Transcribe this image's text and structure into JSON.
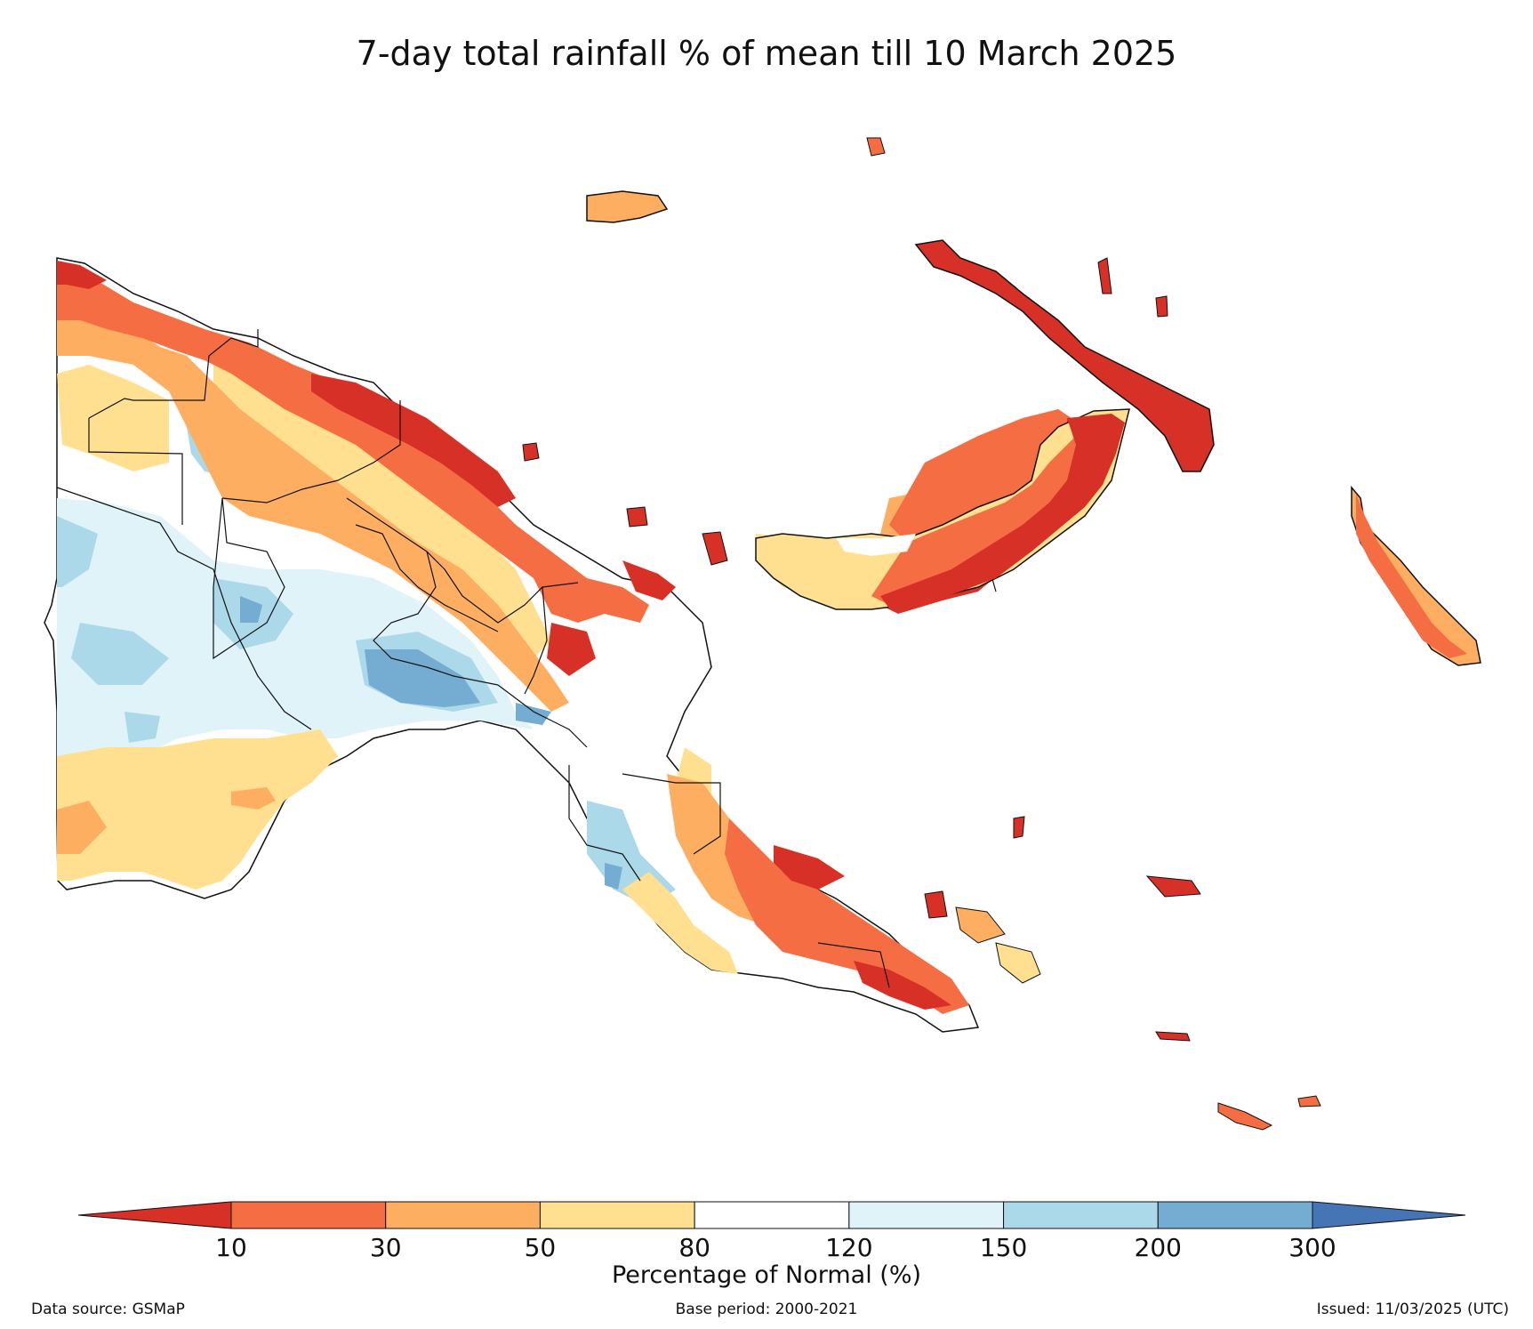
{
  "title": "7-day total rainfall % of mean till 10 March 2025",
  "colorbar": {
    "label": "Percentage of Normal (%)",
    "ticks": [
      "10",
      "30",
      "50",
      "80",
      "120",
      "150",
      "200",
      "300"
    ],
    "colors": [
      "#d73027",
      "#f46d43",
      "#fdae61",
      "#fee090",
      "#ffffff",
      "#e0f3f8",
      "#abd9e9",
      "#74add1",
      "#4575b4"
    ]
  },
  "footer": {
    "source": "Data source: GSMaP",
    "base_period": "Base period: 2000-2021",
    "issued": "Issued: 11/03/2025 (UTC)"
  }
}
